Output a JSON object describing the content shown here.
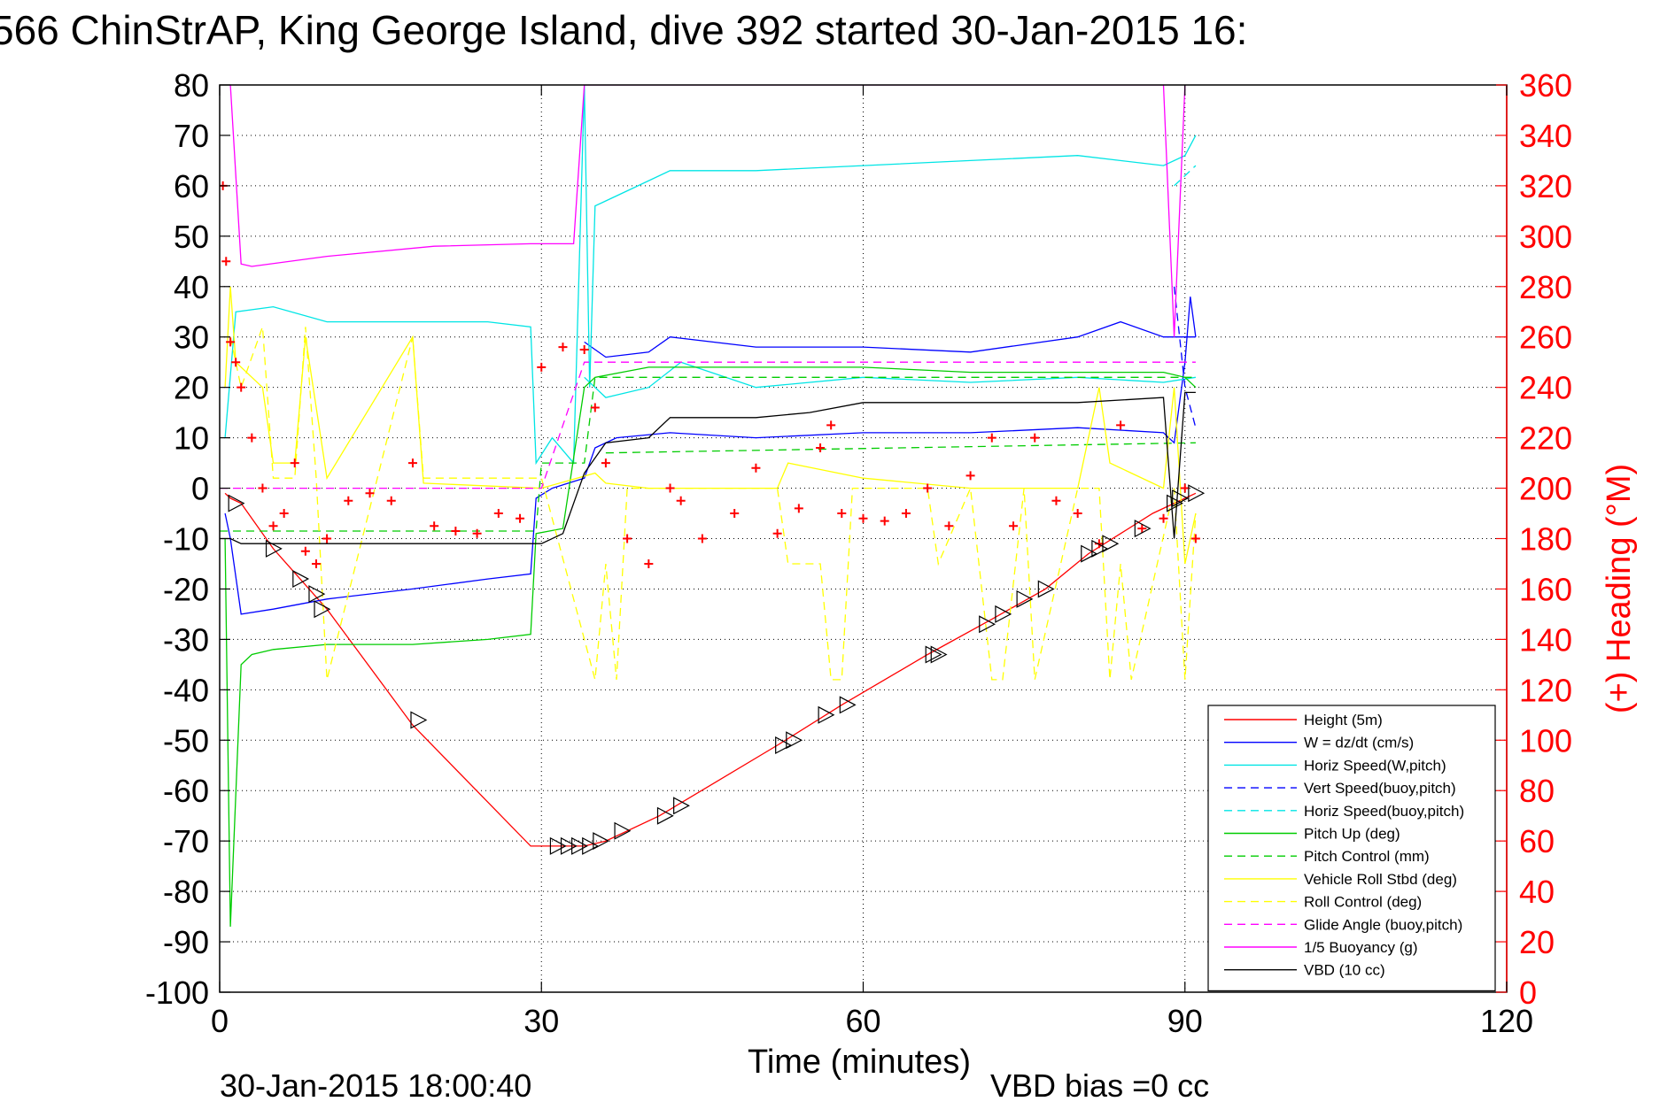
{
  "chart_data": {
    "type": "line",
    "title": "566 ChinStrAP, King George Island, dive 392 started 30-Jan-2015 16:",
    "xlabel": "Time (minutes)",
    "ylabel_right": "(+) Heading (°M)",
    "footer_left": "30-Jan-2015 18:00:40",
    "footer_right": "VBD bias =0 cc",
    "xlim": [
      0,
      120
    ],
    "ylim": [
      -100,
      80
    ],
    "ylim_right": [
      0,
      360
    ],
    "xticks": [
      0,
      30,
      60,
      90,
      120
    ],
    "yticks": [
      80,
      70,
      60,
      50,
      40,
      30,
      20,
      10,
      0,
      -10,
      -20,
      -30,
      -40,
      -50,
      -60,
      -70,
      -80,
      -90,
      -100
    ],
    "yticks_right": [
      360,
      340,
      320,
      300,
      280,
      260,
      240,
      220,
      200,
      180,
      160,
      140,
      120,
      100,
      80,
      60,
      40,
      20,
      0
    ],
    "grid": true,
    "legend_position": "bottom-right",
    "colors": {
      "axis_right": "#ff0000"
    },
    "series": [
      {
        "name": "Height (5m)",
        "color": "#ff0000",
        "dash": false,
        "x": [
          0.5,
          1,
          2,
          5,
          10,
          18,
          29,
          32,
          34,
          36,
          41,
          52,
          58,
          66,
          72,
          77,
          81,
          84,
          87,
          89,
          91
        ],
        "y": [
          -1,
          -2,
          -3,
          -12,
          -24,
          -47,
          -71,
          -71,
          -71,
          -70,
          -65,
          -51,
          -43,
          -33,
          -26,
          -20,
          -13,
          -9,
          -5,
          -3,
          -1
        ]
      },
      {
        "name": "W = dz/dt (cm/s)",
        "color": "#0000ff",
        "dash": false,
        "x": [
          0.5,
          1,
          2,
          5,
          10,
          18,
          25,
          29,
          29.5,
          31,
          34,
          35,
          37,
          42,
          50,
          60,
          70,
          80,
          88,
          89,
          90,
          90.5,
          91
        ],
        "y": [
          -5,
          -10,
          -25,
          -24,
          -22,
          -20,
          -18,
          -17,
          -2,
          0,
          2,
          8,
          10,
          11,
          10,
          11,
          11,
          12,
          11,
          9,
          25,
          38,
          30
        ]
      },
      {
        "name": "W = dz/dt (cm/s) (2)",
        "color": "#0000ff",
        "dash": false,
        "x": [
          34,
          36,
          40,
          42,
          50,
          60,
          70,
          80,
          84,
          88,
          91
        ],
        "y": [
          29,
          26,
          27,
          30,
          28,
          28,
          27,
          30,
          33,
          30,
          30
        ]
      },
      {
        "name": "Horiz Speed(W,pitch)",
        "color": "#00e5e5",
        "dash": false,
        "x": [
          0.5,
          1.5,
          5,
          10,
          18,
          25,
          29,
          29.5,
          31,
          33,
          34,
          34.5,
          35,
          36,
          38,
          42,
          50,
          60,
          70,
          80,
          88,
          90,
          91
        ],
        "y": [
          10,
          35,
          36,
          33,
          33,
          33,
          32,
          5,
          10,
          5,
          80,
          20,
          56,
          57,
          59,
          63,
          63,
          64,
          65,
          66,
          64,
          66,
          70
        ]
      },
      {
        "name": "Horiz Speed(W,pitch) (2)",
        "color": "#00e5e5",
        "dash": false,
        "x": [
          34,
          36,
          40,
          43,
          50,
          60,
          70,
          80,
          88,
          91
        ],
        "y": [
          22,
          18,
          20,
          25,
          20,
          22,
          21,
          22,
          21,
          22
        ]
      },
      {
        "name": "Vert Speed(buoy,pitch)",
        "color": "#0000ff",
        "dash": true,
        "x": [
          89,
          90,
          91
        ],
        "y": [
          40,
          20,
          12
        ]
      },
      {
        "name": "Horiz Speed(buoy,pitch)",
        "color": "#00e5e5",
        "dash": true,
        "x": [
          89,
          90,
          91
        ],
        "y": [
          60,
          62,
          64
        ]
      },
      {
        "name": "Pitch Up (deg)",
        "color": "#00cc00",
        "dash": false,
        "x": [
          0.5,
          1,
          2,
          3,
          5,
          10,
          18,
          25,
          29,
          29.5,
          32,
          34,
          35,
          40,
          50,
          60,
          70,
          80,
          88,
          90,
          91
        ],
        "y": [
          -10,
          -87,
          -35,
          -33,
          -32,
          -31,
          -31,
          -30,
          -29,
          -9,
          -8,
          20,
          22,
          24,
          24,
          24,
          23,
          23,
          23,
          22,
          20
        ]
      },
      {
        "name": "Pitch Control (mm)",
        "color": "#00cc00",
        "dash": true,
        "x": [
          0,
          29.5,
          30,
          34,
          35,
          90,
          91
        ],
        "y": [
          -8.5,
          -8.5,
          5,
          5,
          22,
          22,
          22
        ]
      },
      {
        "name": "Pitch Control (mm) (2)",
        "color": "#00cc00",
        "dash": true,
        "x": [
          36,
          91
        ],
        "y": [
          7,
          9
        ]
      },
      {
        "name": "Vehicle Roll Stbd (deg)",
        "color": "#ffff00",
        "dash": false,
        "x": [
          0.5,
          1,
          1.5,
          4,
          5,
          7,
          8,
          10,
          18,
          19,
          30,
          35,
          36,
          40,
          52,
          53,
          60,
          70,
          80,
          82,
          83,
          88,
          89,
          90,
          91
        ],
        "y": [
          20,
          40,
          25,
          20,
          5,
          5,
          30,
          2,
          30,
          1,
          0,
          3,
          1,
          0,
          0,
          5,
          2,
          0,
          0,
          20,
          5,
          0,
          20,
          -15,
          -5
        ]
      },
      {
        "name": "Roll Control (deg)",
        "color": "#ffff00",
        "dash": true,
        "x": [
          1,
          2,
          4,
          5,
          7,
          8,
          9,
          10,
          18,
          19,
          30,
          35,
          36,
          37,
          38,
          40,
          52,
          53,
          56,
          57,
          58,
          59,
          66,
          67,
          70,
          72,
          73,
          75,
          76,
          80,
          82,
          83,
          84,
          85,
          89,
          90,
          91
        ],
        "y": [
          30,
          20,
          32,
          2,
          2,
          32,
          2,
          -38,
          30,
          2,
          2,
          -38,
          -15,
          -38,
          0,
          0,
          0,
          -15,
          -15,
          -38,
          -38,
          0,
          0,
          -15,
          0,
          -38,
          -38,
          0,
          -38,
          0,
          0,
          -38,
          -15,
          -38,
          0,
          -38,
          -5
        ]
      },
      {
        "name": "Glide Angle (buoy,pitch)",
        "color": "#ff00ff",
        "dash": true,
        "x": [
          0,
          30,
          34,
          35,
          91
        ],
        "y": [
          0,
          0,
          25,
          25,
          25
        ]
      },
      {
        "name": "1/5 Buoyancy (g)",
        "color": "#ff00ff",
        "dash": false,
        "x": [
          1,
          2,
          3,
          10,
          20,
          29,
          31,
          33,
          34,
          88,
          89,
          90
        ],
        "y": [
          80,
          44.5,
          44,
          46,
          48,
          48.5,
          48.5,
          48.5,
          80,
          80,
          30,
          80
        ]
      },
      {
        "name": "VBD (10 cc)",
        "color": "#000000",
        "dash": false,
        "x": [
          0,
          1,
          2,
          10,
          20,
          29,
          30,
          32,
          34,
          36,
          40,
          42,
          50,
          55,
          60,
          70,
          80,
          88,
          89,
          90,
          91
        ],
        "y": [
          -10,
          -10,
          -11,
          -11,
          -11,
          -11,
          -11,
          -9,
          3,
          9,
          10,
          14,
          14,
          15,
          17,
          17,
          17,
          18,
          -10,
          19,
          19
        ]
      }
    ],
    "heading_points": {
      "name": "(+) Heading",
      "color": "#ff0000",
      "x": [
        0.3,
        0.6,
        1,
        1.5,
        2,
        3,
        4,
        5,
        6,
        7,
        8,
        9,
        10,
        12,
        14,
        16,
        18,
        20,
        22,
        24,
        26,
        28,
        30,
        32,
        34,
        35,
        36,
        38,
        40,
        42,
        43,
        45,
        48,
        50,
        52,
        54,
        56,
        57,
        58,
        60,
        62,
        64,
        66,
        68,
        70,
        72,
        74,
        76,
        78,
        80,
        82,
        84,
        86,
        88,
        90,
        91
      ],
      "y": [
        320,
        290,
        258,
        250,
        240,
        220,
        200,
        185,
        190,
        210,
        175,
        170,
        180,
        195,
        198,
        195,
        210,
        185,
        183,
        182,
        190,
        188,
        248,
        256,
        255,
        232,
        210,
        180,
        170,
        200,
        195,
        180,
        190,
        208,
        182,
        192,
        216,
        225,
        190,
        188,
        187,
        190,
        200,
        185,
        205,
        220,
        185,
        220,
        195,
        190,
        178,
        225,
        184,
        188,
        200,
        180
      ]
    },
    "markers": {
      "name": "Height (5m) markers",
      "x": [
        1.5,
        5,
        7.5,
        9,
        9.5,
        18.5,
        31.5,
        32.5,
        33.5,
        34.5,
        35.5,
        37.5,
        41.5,
        43,
        52.5,
        53.5,
        56.5,
        58.5,
        66.5,
        67,
        71.5,
        73,
        75,
        77,
        81,
        82,
        83,
        86,
        89,
        89.5,
        91
      ],
      "y": [
        -3,
        -12,
        -18,
        -21,
        -24,
        -46,
        -71,
        -71,
        -71,
        -71,
        -70,
        -68,
        -65,
        -63,
        -51,
        -50,
        -45,
        -43,
        -33,
        -33,
        -27,
        -25,
        -22,
        -20,
        -13,
        -12,
        -11,
        -8,
        -3,
        -2,
        -1
      ]
    }
  }
}
